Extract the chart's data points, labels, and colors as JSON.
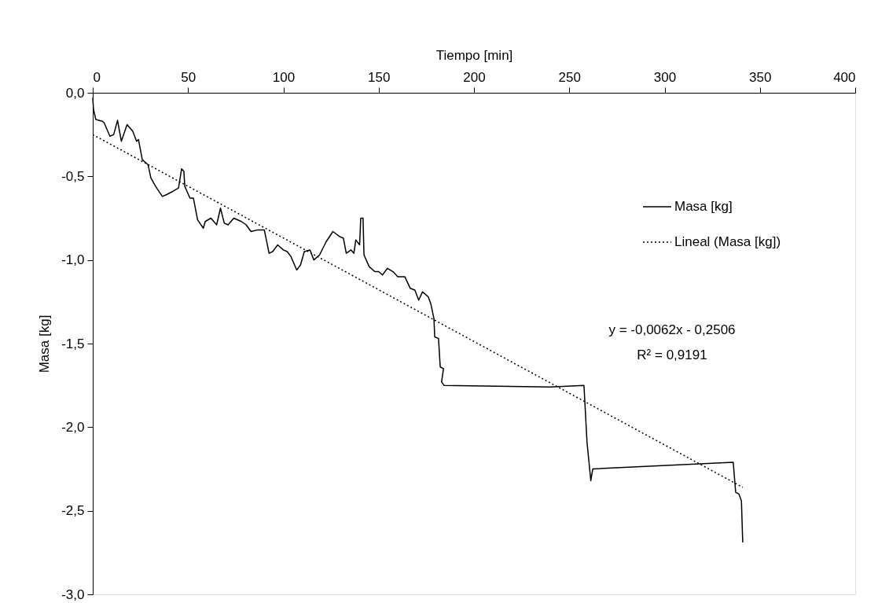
{
  "chart_data": {
    "type": "line",
    "xlabel": "Tiempo [min]",
    "ylabel": "Masa [kg]",
    "xlim": [
      0,
      400
    ],
    "xticks": [
      0,
      50,
      100,
      150,
      200,
      250,
      300,
      350,
      400
    ],
    "ylim": [
      -3,
      0
    ],
    "yticks": [
      {
        "value": 0,
        "label": "0,0"
      },
      {
        "value": -0.5,
        "label": "-0,5"
      },
      {
        "value": -1,
        "label": "-1,0"
      },
      {
        "value": -1.5,
        "label": "-1,5"
      },
      {
        "value": -2,
        "label": "-2,0"
      },
      {
        "value": -2.5,
        "label": "-2,5"
      },
      {
        "value": -3,
        "label": "-3,0"
      }
    ],
    "grid": false,
    "legend": "right",
    "marker": "none",
    "annotations": [
      "y = -0,0062x  - 0,2506",
      "R² = 0,9191"
    ],
    "series": [
      {
        "name": "Masa [kg]",
        "color": "#000000",
        "line_style": "solid",
        "x": [
          0,
          0.4,
          1.6,
          5,
          6,
          9,
          11,
          13,
          15,
          18,
          21,
          23,
          24,
          26,
          29,
          30.5,
          33,
          36.5,
          38.5,
          42,
          45,
          46.6,
          47.8,
          48.3,
          51,
          52.8,
          55,
          58,
          59,
          62,
          65,
          67,
          69,
          71,
          74,
          78,
          80.5,
          83,
          86.6,
          90,
          92.5,
          94.4,
          97,
          100,
          102,
          104,
          107,
          109,
          111,
          114,
          116,
          119,
          122.5,
          126,
          129.5,
          131.5,
          133,
          135.5,
          137,
          138,
          140,
          140.6,
          141.8,
          142.3,
          145,
          148,
          150,
          152,
          154.6,
          157.5,
          160,
          163.7,
          166.6,
          169,
          171,
          173,
          176,
          177.3,
          179,
          179.4,
          181.4,
          182.3,
          184,
          183,
          184.3,
          240,
          257.7,
          259.3,
          261.3,
          262.3,
          336,
          337.3,
          339,
          340.3,
          341
        ],
        "values": [
          -0.03,
          -0.1,
          -0.16,
          -0.17,
          -0.18,
          -0.26,
          -0.25,
          -0.165,
          -0.29,
          -0.19,
          -0.23,
          -0.29,
          -0.28,
          -0.4,
          -0.43,
          -0.51,
          -0.56,
          -0.62,
          -0.61,
          -0.59,
          -0.57,
          -0.455,
          -0.47,
          -0.56,
          -0.63,
          -0.63,
          -0.76,
          -0.81,
          -0.77,
          -0.75,
          -0.79,
          -0.69,
          -0.78,
          -0.79,
          -0.75,
          -0.77,
          -0.79,
          -0.83,
          -0.82,
          -0.82,
          -0.96,
          -0.95,
          -0.91,
          -0.94,
          -0.95,
          -0.98,
          -1.06,
          -1.03,
          -0.95,
          -0.94,
          -1.0,
          -0.97,
          -0.89,
          -0.83,
          -0.86,
          -0.87,
          -0.96,
          -0.94,
          -0.96,
          -0.88,
          -0.91,
          -0.75,
          -0.75,
          -0.97,
          -1.04,
          -1.07,
          -1.07,
          -1.09,
          -1.05,
          -1.07,
          -1.1,
          -1.1,
          -1.17,
          -1.18,
          -1.24,
          -1.19,
          -1.22,
          -1.26,
          -1.35,
          -1.46,
          -1.47,
          -1.64,
          -1.65,
          -1.73,
          -1.75,
          -1.76,
          -1.75,
          -2.09,
          -2.32,
          -2.25,
          -2.21,
          -2.39,
          -2.4,
          -2.44,
          -2.69
        ]
      },
      {
        "name": "Lineal (Masa [kg])",
        "color": "#000000",
        "line_style": "dotted",
        "x": [
          0,
          341
        ],
        "values": [
          -0.25,
          -2.36
        ]
      }
    ]
  }
}
